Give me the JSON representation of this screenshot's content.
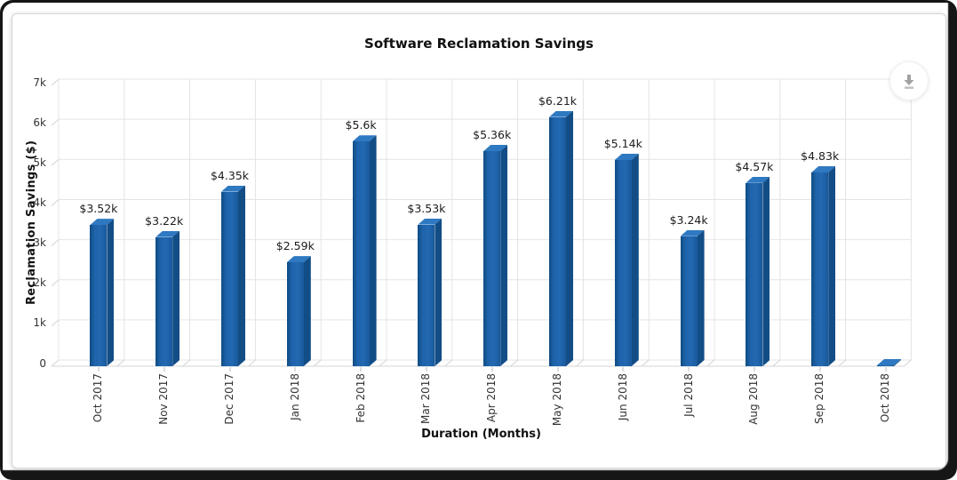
{
  "chart": {
    "title": "Software Reclamation Savings",
    "x_axis_title": "Duration (Months)",
    "y_axis_title": "Reclamation Savings ($)"
  },
  "toolbar": {
    "download_icon": "download"
  },
  "colors": {
    "bar_front_dark": "#0f4b82",
    "bar_front_mid": "#1e63aa",
    "bar_front_light": "#2269b3",
    "bar_front_right": "#19599b",
    "bar_top": "#2e79c1",
    "bar_side": "#134d86",
    "grid_back": "#e4e4e4",
    "grid_front": "#d4d4d4",
    "tick_text": "#333333",
    "title_text": "#111111"
  },
  "chart_data": {
    "type": "bar",
    "style": "3d-column",
    "title": "Software Reclamation Savings",
    "xlabel": "Duration (Months)",
    "ylabel": "Reclamation Savings ($)",
    "categories": [
      "Oct 2017",
      "Nov 2017",
      "Dec 2017",
      "Jan 2018",
      "Feb 2018",
      "Mar 2018",
      "Apr 2018",
      "May 2018",
      "Jun 2018",
      "Jul 2018",
      "Aug 2018",
      "Sep 2018",
      "Oct 2018"
    ],
    "values": [
      3.52,
      3.22,
      4.35,
      2.59,
      5.6,
      3.53,
      5.36,
      6.21,
      5.14,
      3.24,
      4.57,
      4.83,
      0.02
    ],
    "value_unit": "k",
    "value_labels": [
      "$3.52k",
      "$3.22k",
      "$4.35k",
      "$2.59k",
      "$5.6k",
      "$3.53k",
      "$5.36k",
      "$6.21k",
      "$5.14k",
      "$3.24k",
      "$4.57k",
      "$4.83k",
      ""
    ],
    "y_ticks": [
      "0",
      "1k",
      "2k",
      "3k",
      "4k",
      "5k",
      "6k",
      "7k"
    ],
    "ylim": [
      0,
      7
    ],
    "grid": true,
    "legend": false
  }
}
